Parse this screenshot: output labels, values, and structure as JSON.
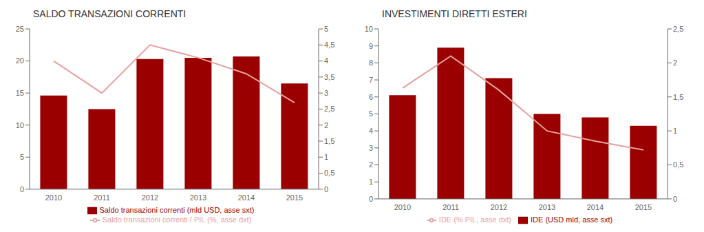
{
  "chart_data": [
    {
      "type": "bar",
      "title": "SALDO TRANSAZIONI CORRENTI",
      "categories": [
        "2010",
        "2011",
        "2012",
        "2013",
        "2014",
        "2015"
      ],
      "series": [
        {
          "name": "Saldo transazioni correnti (mld USD, asse sxt)",
          "type": "bar",
          "color": "#9B0000",
          "values": [
            14.6,
            12.5,
            20.3,
            20.5,
            20.7,
            16.5
          ]
        },
        {
          "name": "Saldo transazioni correnti / PIL (%, asse dxt)",
          "type": "line",
          "axis": "y2",
          "color": "#E8A0A0",
          "values": [
            4.0,
            3.0,
            4.5,
            4.1,
            3.6,
            2.7
          ]
        }
      ],
      "ylim": [
        0,
        25
      ],
      "yticks": [
        0,
        5,
        10,
        15,
        20,
        25
      ],
      "y2lim": [
        0,
        5
      ],
      "y2ticks": [
        0,
        {
          "value": 0.5,
          "label": "0,5"
        },
        1,
        {
          "value": 1.5,
          "label": "1,5"
        },
        2,
        {
          "value": 2.5,
          "label": "2,5"
        },
        3,
        {
          "value": 3.5,
          "label": "3,5"
        },
        4,
        {
          "value": 4.5,
          "label": "4,5"
        },
        5
      ]
    },
    {
      "type": "bar",
      "title": "INVESTIMENTI DIRETTI ESTERI",
      "categories": [
        "2010",
        "2011",
        "2012",
        "2013",
        "2014",
        "2015"
      ],
      "series": [
        {
          "name": "IDE (USD mld, asse sxt)",
          "type": "bar",
          "color": "#9B0000",
          "values": [
            6.1,
            8.9,
            7.1,
            5.0,
            4.8,
            4.3
          ]
        },
        {
          "name": "IDE (% PIL, asse dxt)",
          "type": "line",
          "axis": "y2",
          "color": "#E8A0A0",
          "values": [
            1.63,
            2.1,
            1.6,
            1.0,
            0.85,
            0.72
          ]
        }
      ],
      "ylim": [
        0,
        10
      ],
      "yticks": [
        0,
        1,
        2,
        3,
        4,
        5,
        6,
        7,
        8,
        9,
        10
      ],
      "y2lim": [
        0,
        2.5
      ],
      "y2ticks": [
        0,
        {
          "value": 0.5,
          "label": "0,5"
        },
        1,
        {
          "value": 1.5,
          "label": "1,5"
        },
        2,
        {
          "value": 2.5,
          "label": "2,5"
        }
      ]
    }
  ]
}
